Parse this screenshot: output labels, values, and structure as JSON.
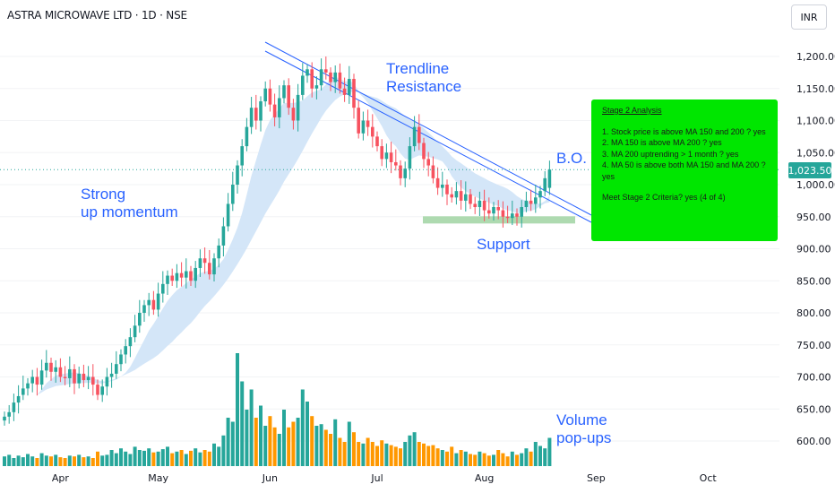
{
  "header": {
    "symbol_title": "ASTRA MICROWAVE LTD · 1D · NSE",
    "currency_button": "INR",
    "last_price_label": "1,023.50"
  },
  "annotations": {
    "trendline": "Trendline\nResistance",
    "strong_momentum": "Strong\nup momentum",
    "breakout": "B.O.",
    "support": "Support",
    "volume": "Volume\npop-ups"
  },
  "stage2_box": {
    "title": "Stage 2 Analysis",
    "criteria": [
      "1. Stock price is above MA 150 and 200 ? yes",
      "2. MA 150 is above MA 200 ? yes",
      "3. MA 200 uptrending > 1 month ? yes",
      "4. MA 50 is above both MA 150 and MA 200 ? yes"
    ],
    "meet": "Meet Stage 2 Criteria? yes (4 of 4)"
  },
  "colors": {
    "up": "#26a69a",
    "down": "#f7525f",
    "volume_up": "#26a69a",
    "volume_down": "#ff9800",
    "ribbon": "#cfe3f7",
    "trendline": "#2962ff",
    "support_zone": "#a5d6a7",
    "stage2_box": "#00e600"
  },
  "chart_data": {
    "type": "candlestick",
    "title": "ASTRA MICROWAVE LTD · 1D · NSE",
    "x_labels": [
      "Apr",
      "May",
      "Jun",
      "Jul",
      "Aug",
      "Sep",
      "Oct"
    ],
    "y_ticks": [
      600,
      650,
      700,
      750,
      800,
      850,
      900,
      950,
      1000,
      1050,
      1100,
      1150,
      1200
    ],
    "y_tick_labels": [
      "600.00",
      "650.00",
      "700.00",
      "750.00",
      "800.00",
      "850.00",
      "900.00",
      "950.00",
      "1,000.00",
      "1,050.00",
      "1,100.00",
      "1,150.00",
      "1,200.00"
    ],
    "ylim": [
      570,
      1225
    ],
    "last_price": 1023.5,
    "support_level": 945,
    "trendline_start": {
      "date": "2024-05-27",
      "price": 1215
    },
    "trendline_end": {
      "date": "2024-08-28",
      "price": 950
    },
    "closes": [
      638,
      645,
      660,
      670,
      682,
      690,
      700,
      688,
      710,
      722,
      708,
      715,
      700,
      698,
      712,
      690,
      705,
      695,
      700,
      688,
      672,
      685,
      700,
      705,
      720,
      735,
      748,
      762,
      780,
      800,
      812,
      820,
      805,
      830,
      845,
      858,
      850,
      862,
      855,
      865,
      850,
      870,
      885,
      878,
      860,
      885,
      905,
      935,
      970,
      1000,
      1030,
      1060,
      1090,
      1120,
      1100,
      1130,
      1150,
      1125,
      1105,
      1135,
      1155,
      1120,
      1100,
      1140,
      1170,
      1180,
      1150,
      1155,
      1180,
      1175,
      1160,
      1175,
      1150,
      1140,
      1165,
      1120,
      1080,
      1100,
      1090,
      1075,
      1060,
      1040,
      1050,
      1035,
      1030,
      1010,
      1025,
      1060,
      1090,
      1065,
      1040,
      1030,
      1010,
      995,
      1000,
      985,
      980,
      990,
      975,
      985,
      970,
      965,
      975,
      960,
      955,
      965,
      960,
      950,
      948,
      955,
      950,
      965,
      975,
      970,
      980,
      990,
      1010,
      1023.5
    ],
    "opens": [
      632,
      638,
      645,
      660,
      672,
      682,
      690,
      700,
      688,
      710,
      722,
      708,
      715,
      700,
      698,
      712,
      690,
      705,
      695,
      700,
      688,
      672,
      685,
      700,
      705,
      720,
      735,
      748,
      762,
      780,
      800,
      812,
      820,
      805,
      830,
      845,
      858,
      850,
      862,
      855,
      865,
      850,
      870,
      885,
      878,
      860,
      885,
      905,
      935,
      970,
      1000,
      1030,
      1060,
      1090,
      1120,
      1100,
      1130,
      1150,
      1125,
      1105,
      1135,
      1155,
      1120,
      1100,
      1140,
      1170,
      1180,
      1150,
      1155,
      1180,
      1175,
      1160,
      1175,
      1150,
      1140,
      1165,
      1120,
      1080,
      1100,
      1090,
      1075,
      1060,
      1040,
      1050,
      1035,
      1030,
      1010,
      1025,
      1060,
      1090,
      1065,
      1040,
      1030,
      1010,
      995,
      1000,
      985,
      980,
      990,
      975,
      985,
      970,
      965,
      975,
      960,
      955,
      965,
      960,
      950,
      948,
      955,
      950,
      965,
      975,
      970,
      980,
      990,
      995
    ],
    "volumes": [
      12,
      14,
      10,
      13,
      11,
      15,
      12,
      10,
      16,
      13,
      12,
      14,
      11,
      10,
      13,
      12,
      14,
      11,
      12,
      10,
      18,
      13,
      14,
      20,
      16,
      22,
      18,
      15,
      24,
      20,
      19,
      22,
      17,
      18,
      21,
      24,
      16,
      18,
      20,
      15,
      19,
      22,
      17,
      20,
      18,
      28,
      24,
      38,
      60,
      55,
      140,
      105,
      70,
      95,
      60,
      75,
      50,
      62,
      48,
      40,
      70,
      48,
      55,
      60,
      95,
      80,
      62,
      50,
      52,
      45,
      40,
      58,
      35,
      30,
      55,
      42,
      30,
      28,
      35,
      30,
      25,
      32,
      28,
      26,
      24,
      22,
      30,
      38,
      42,
      30,
      28,
      25,
      26,
      22,
      20,
      18,
      24,
      16,
      20,
      18,
      15,
      14,
      18,
      16,
      13,
      14,
      20,
      16,
      12,
      18,
      14,
      16,
      22,
      18,
      30,
      25,
      22,
      35
    ]
  }
}
